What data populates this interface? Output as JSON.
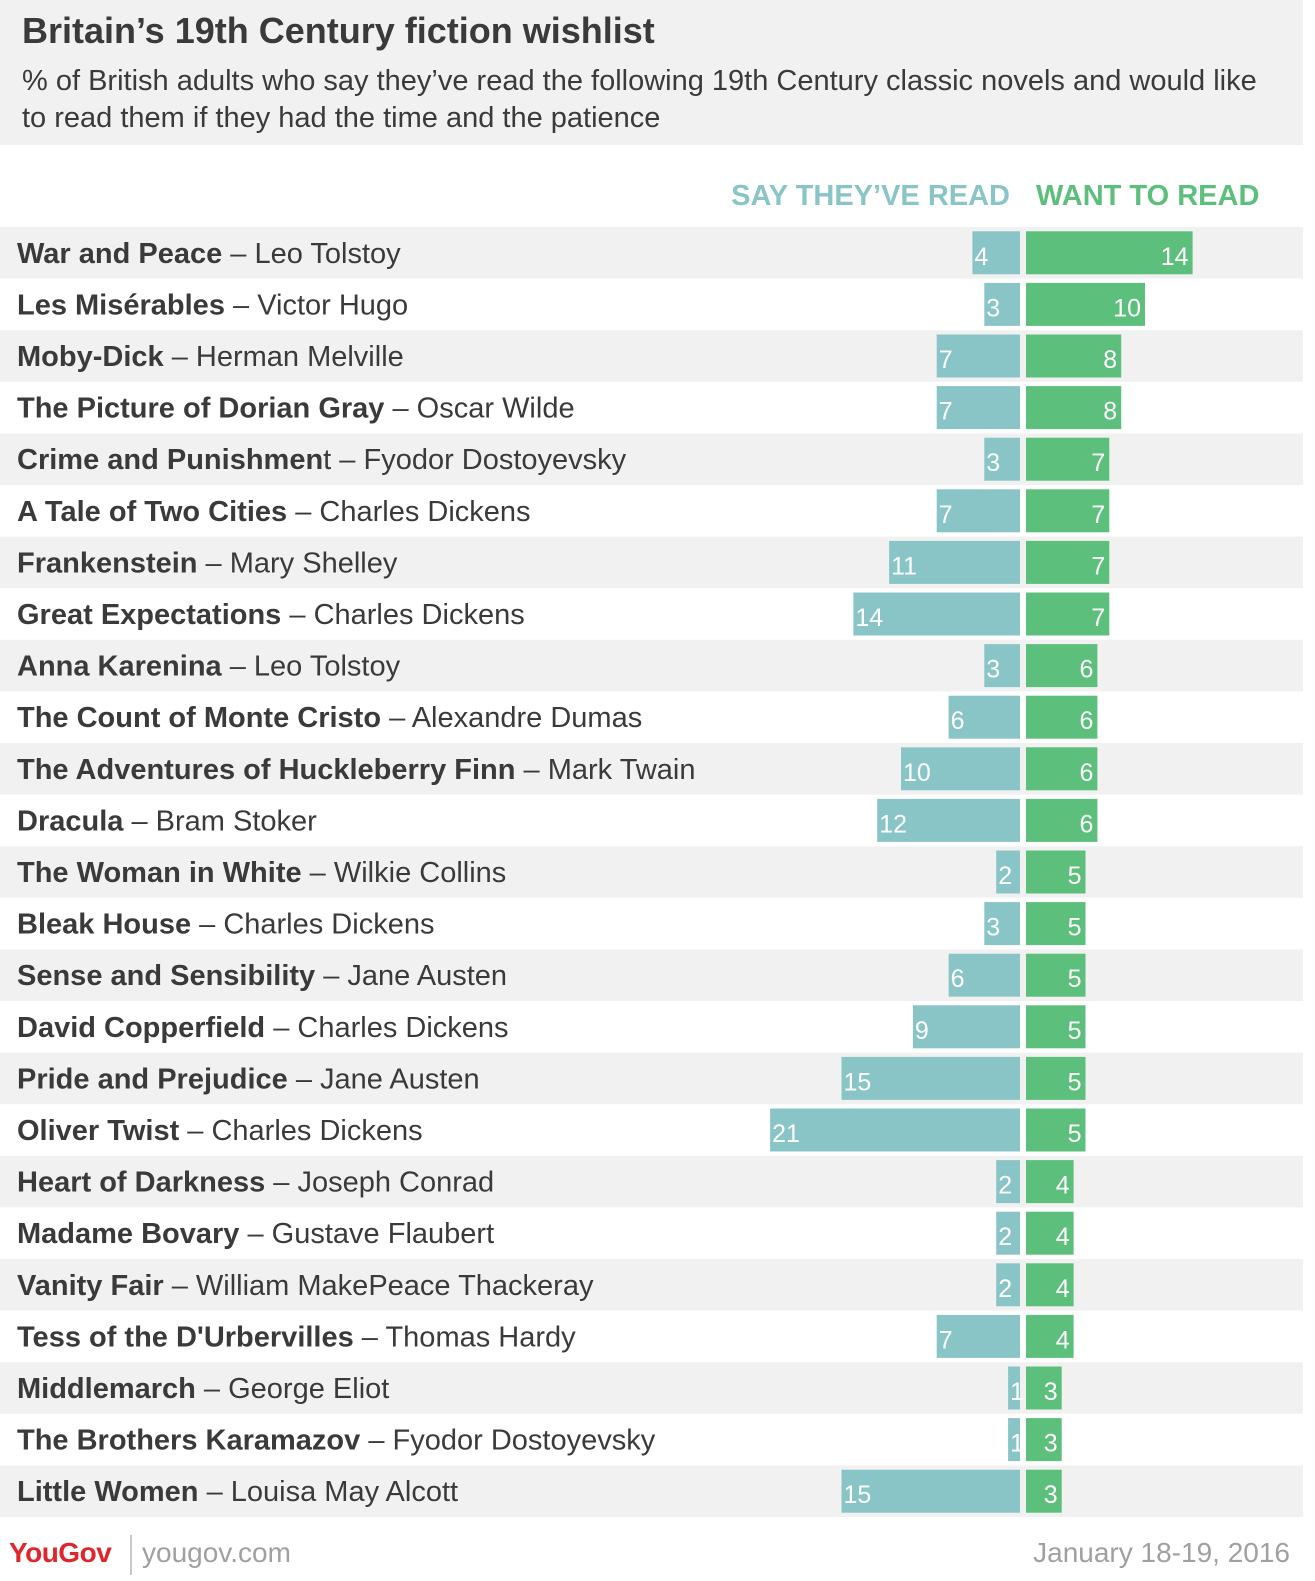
{
  "header": {
    "title": "Britain’s 19th Century fiction wishlist",
    "subtitle": "% of British adults who say they’ve read the following 19th Century classic novels and would like to read them if they had the time and the patience"
  },
  "columns": {
    "read": "SAY THEY’VE READ",
    "want": "WANT TO READ"
  },
  "colors": {
    "read": "#89c5c7",
    "want": "#5cbf7c",
    "row_band": "#f1f1f1",
    "logo": "#e0262d"
  },
  "chart_data": {
    "type": "bar",
    "orientation": "horizontal-diverging",
    "title": "Britain’s 19th Century fiction wishlist",
    "unit": "%",
    "categories": [
      "War and Peace – Leo Tolstoy",
      "Les Misérables – Victor Hugo",
      "Moby-Dick – Herman Melville",
      "The Picture of Dorian Gray – Oscar Wilde",
      "Crime and Punishment – Fyodor Dostoyevsky",
      "A Tale of Two Cities – Charles Dickens",
      "Frankenstein – Mary Shelley",
      "Great Expectations – Charles Dickens",
      "Anna Karenina – Leo Tolstoy",
      "The Count of Monte Cristo – Alexandre Dumas",
      "The Adventures of Huckleberry Finn – Mark Twain",
      "Dracula – Bram Stoker",
      "The Woman in White – Wilkie Collins",
      "Bleak House – Charles Dickens",
      "Sense and Sensibility – Jane Austen",
      "David Copperfield – Charles Dickens",
      "Pride and Prejudice – Jane Austen",
      "Oliver Twist – Charles Dickens",
      "Heart of Darkness – Joseph Conrad",
      "Madame Bovary – Gustave Flaubert",
      "Vanity Fair – William MakePeace Thackeray",
      "Tess of the D'Urbervilles – Thomas Hardy",
      "Middlemarch – George Eliot",
      "The Brothers Karamazov – Fyodor Dostoyevsky",
      "Little Women – Louisa May Alcott"
    ],
    "rows": [
      {
        "title": "War and Peace",
        "author": "Leo Tolstoy"
      },
      {
        "title": "Les Misérables",
        "author": "Victor Hugo"
      },
      {
        "title": "Moby-Dick",
        "author": "Herman Melville"
      },
      {
        "title": "The Picture of Dorian Gray",
        "author": "Oscar Wilde"
      },
      {
        "title": "Crime and Punishmen",
        "title_tail": "t",
        "author": "Fyodor Dostoyevsky"
      },
      {
        "title": "A Tale of Two Cities",
        "author": "Charles Dickens"
      },
      {
        "title": "Frankenstein",
        "author": "Mary Shelley"
      },
      {
        "title": "Great Expectations",
        "author": "Charles Dickens"
      },
      {
        "title": "Anna Karenina",
        "author": "Leo Tolstoy"
      },
      {
        "title": "The Count of Monte Cristo",
        "author": "Alexandre Dumas"
      },
      {
        "title": "The Adventures of Huckleberry Finn",
        "author": "Mark Twain"
      },
      {
        "title": "Dracula",
        "author": "Bram Stoker"
      },
      {
        "title": "The Woman in White",
        "author": "Wilkie Collins"
      },
      {
        "title": "Bleak House",
        "author": "Charles Dickens"
      },
      {
        "title": "Sense and Sensibility",
        "author": "Jane Austen"
      },
      {
        "title": "David Copperfield",
        "author": "Charles Dickens"
      },
      {
        "title": "Pride and Prejudice",
        "author": "Jane Austen"
      },
      {
        "title": "Oliver Twist",
        "author": "Charles Dickens"
      },
      {
        "title": "Heart of Darkness",
        "author": "Joseph Conrad"
      },
      {
        "title": "Madame Bovary",
        "author": "Gustave Flaubert"
      },
      {
        "title": "Vanity Fair",
        "author": "William MakePeace Thackeray"
      },
      {
        "title": "Tess of the D'Urbervilles",
        "author": "Thomas Hardy"
      },
      {
        "title": "Middlemarch",
        "author": "George Eliot"
      },
      {
        "title": "The Brothers Karamazov",
        "author": "Fyodor Dostoyevsky"
      },
      {
        "title": "Little Women",
        "author": "Louisa May Alcott"
      }
    ],
    "series": [
      {
        "name": "SAY THEY’VE READ",
        "values": [
          4,
          3,
          7,
          7,
          3,
          7,
          11,
          14,
          3,
          6,
          10,
          12,
          2,
          3,
          6,
          9,
          15,
          21,
          2,
          2,
          2,
          7,
          1,
          1,
          15
        ]
      },
      {
        "name": "WANT TO READ",
        "values": [
          14,
          10,
          8,
          8,
          7,
          7,
          7,
          7,
          6,
          6,
          6,
          6,
          5,
          5,
          5,
          5,
          5,
          5,
          4,
          4,
          4,
          4,
          3,
          3,
          3
        ]
      }
    ],
    "legend": "top",
    "grid": false
  },
  "footer": {
    "logo": "YouGov",
    "site": "yougov.com",
    "date": "January 18-19, 2016"
  }
}
